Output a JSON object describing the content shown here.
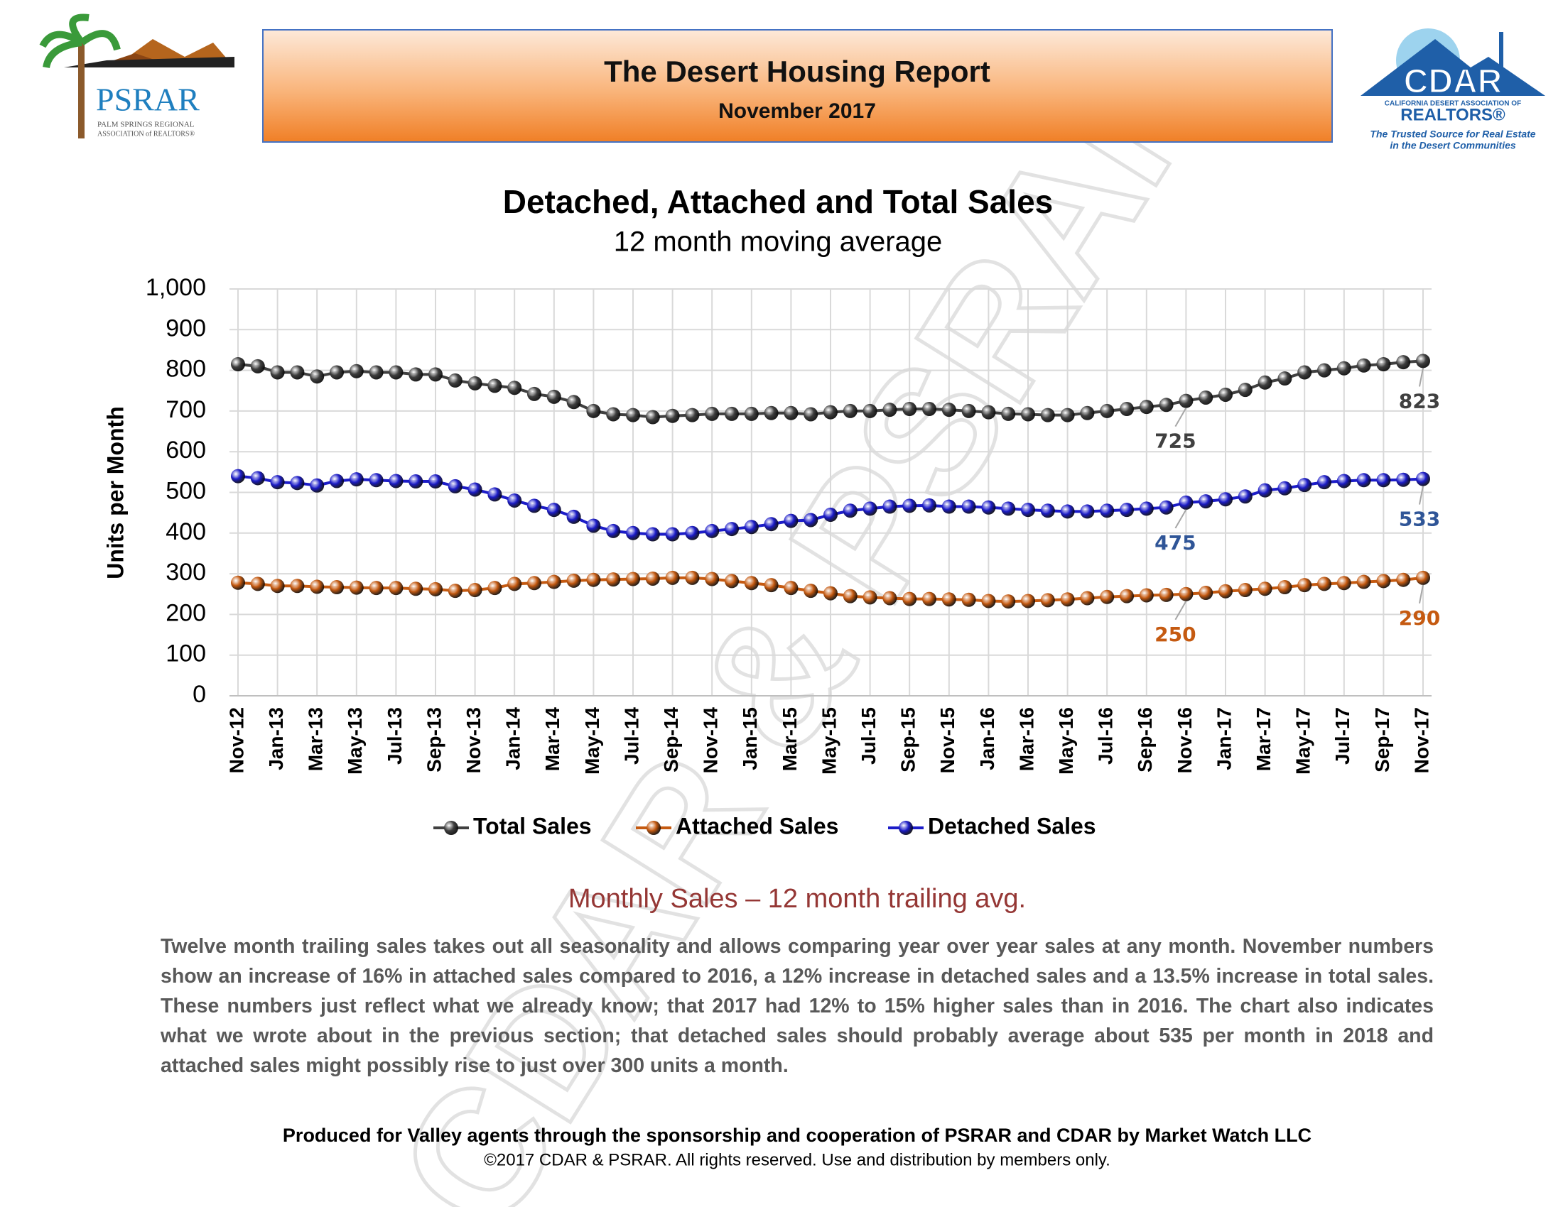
{
  "header": {
    "title": "The Desert Housing Report",
    "date": "November 2017",
    "left_logo": {
      "name": "PSRAR",
      "line1": "PALM SPRINGS REGIONAL",
      "line2": "ASSOCIATION of REALTORS®"
    },
    "right_logo": {
      "name": "CDAR",
      "line1": "CALIFORNIA DESERT ASSOCIATION OF",
      "line2": "REALTORS®",
      "tagline1": "The Trusted Source for Real Estate",
      "tagline2": "in the Desert Communities"
    }
  },
  "watermark": "CDAR & PSRAR",
  "chart_data": {
    "type": "line",
    "title": "Detached, Attached and Total Sales",
    "subtitle": "12 month moving average",
    "y_label": "Units per Month",
    "categories": [
      "Nov-12",
      null,
      "Jan-13",
      null,
      "Mar-13",
      null,
      "May-13",
      null,
      "Jul-13",
      null,
      "Sep-13",
      null,
      "Nov-13",
      null,
      "Jan-14",
      null,
      "Mar-14",
      null,
      "May-14",
      null,
      "Jul-14",
      null,
      "Sep-14",
      null,
      "Nov-14",
      null,
      "Jan-15",
      null,
      "Mar-15",
      null,
      "May-15",
      null,
      "Jul-15",
      null,
      "Sep-15",
      null,
      "Nov-15",
      null,
      "Jan-16",
      null,
      "Mar-16",
      null,
      "May-16",
      null,
      "Jul-16",
      null,
      "Sep-16",
      null,
      "Nov-16",
      null,
      "Jan-17",
      null,
      "Mar-17",
      null,
      "May-17",
      null,
      "Jul-17",
      null,
      "Sep-17",
      null,
      "Nov-17"
    ],
    "series": [
      {
        "name": "Total Sales",
        "color": "#404040",
        "values": [
          815,
          810,
          795,
          795,
          785,
          795,
          798,
          795,
          795,
          790,
          790,
          775,
          768,
          762,
          757,
          742,
          735,
          722,
          700,
          692,
          690,
          685,
          688,
          690,
          693,
          693,
          693,
          695,
          695,
          692,
          697,
          700,
          700,
          703,
          705,
          705,
          703,
          700,
          697,
          693,
          692,
          690,
          690,
          695,
          700,
          705,
          710,
          715,
          725,
          733,
          740,
          752,
          770,
          780,
          795,
          800,
          805,
          812,
          815,
          820,
          823
        ]
      },
      {
        "name": "Attached Sales",
        "color": "#c55a11",
        "values": [
          278,
          275,
          270,
          270,
          268,
          267,
          266,
          265,
          265,
          263,
          262,
          258,
          260,
          265,
          275,
          277,
          280,
          283,
          285,
          286,
          287,
          288,
          290,
          290,
          287,
          282,
          277,
          272,
          265,
          258,
          252,
          245,
          242,
          240,
          238,
          238,
          237,
          236,
          233,
          232,
          233,
          235,
          237,
          240,
          243,
          245,
          247,
          248,
          250,
          253,
          257,
          260,
          263,
          267,
          272,
          275,
          277,
          280,
          282,
          285,
          290
        ]
      },
      {
        "name": "Detached Sales",
        "color": "#1c1cc8",
        "values": [
          540,
          535,
          525,
          523,
          517,
          528,
          532,
          530,
          528,
          527,
          527,
          515,
          507,
          495,
          480,
          467,
          457,
          440,
          418,
          405,
          400,
          397,
          397,
          400,
          405,
          410,
          415,
          422,
          430,
          432,
          445,
          455,
          460,
          465,
          467,
          468,
          465,
          465,
          463,
          460,
          457,
          455,
          453,
          453,
          455,
          457,
          460,
          463,
          475,
          478,
          483,
          490,
          505,
          510,
          518,
          525,
          528,
          530,
          530,
          531,
          533
        ]
      }
    ],
    "ylim": [
      0,
      1000
    ],
    "yticks": [
      0,
      100,
      200,
      300,
      400,
      500,
      600,
      700,
      800,
      900,
      {
        "value": 1000,
        "label": "1,000"
      }
    ],
    "grid": true,
    "legend": "bottom"
  },
  "body": {
    "heading": "Monthly Sales – 12 month trailing avg.",
    "text": "Twelve month trailing sales takes out all seasonality and allows comparing year over year sales at any month. November numbers show an increase of 16% in attached sales compared to 2016, a 12% increase in detached sales and a 13.5% increase in total sales. These numbers just reflect what we already know; that 2017 had 12% to 15% higher sales than in 2016. The chart also indicates what we wrote about in the previous section; that detached sales should probably average about 535 per month in 2018 and attached sales might possibly rise to just over 300 units a month."
  },
  "footer": {
    "credit": "Produced for Valley agents through the sponsorship and cooperation of PSRAR and CDAR by Market Watch LLC",
    "copyright": "©2017 CDAR & PSRAR.  All rights reserved.  Use and distribution by members only."
  }
}
